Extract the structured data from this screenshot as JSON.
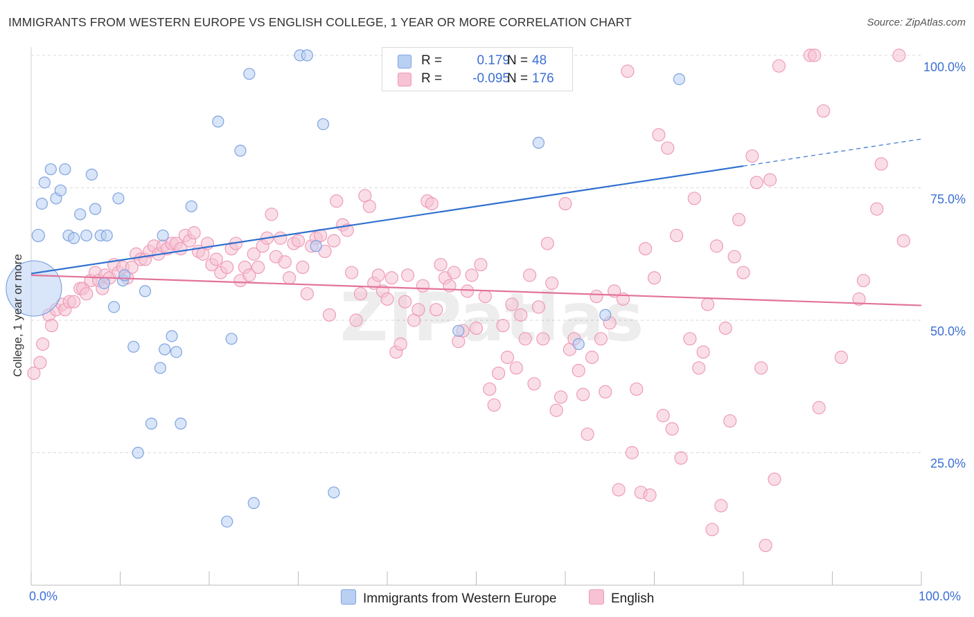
{
  "title": "IMMIGRANTS FROM WESTERN EUROPE VS ENGLISH COLLEGE, 1 YEAR OR MORE CORRELATION CHART",
  "source": "Source: ZipAtlas.com",
  "legend": {
    "series1": {
      "r_label": "R =",
      "r_value": "0.179",
      "n_label": "N =",
      "n_value": "48"
    },
    "series2": {
      "r_label": "R =",
      "r_value": "-0.095",
      "n_label": "N =",
      "n_value": "176"
    }
  },
  "colors": {
    "blue_fill": "#b9d0f2",
    "blue_stroke": "#7ea3e0",
    "blue_line": "#2f6fcf",
    "pink_fill": "#f6c2d4",
    "pink_stroke": "#ee9bb8",
    "pink_line": "#e2729a",
    "accent_text": "#3d6fd4"
  },
  "chart_data": {
    "type": "scatter",
    "title": "IMMIGRANTS FROM WESTERN EUROPE VS ENGLISH COLLEGE, 1 YEAR OR MORE CORRELATION CHART",
    "xlabel": "",
    "ylabel": "College, 1 year or more",
    "xlim": [
      0,
      100
    ],
    "ylim": [
      0,
      100
    ],
    "x_tick_labels": [
      "0.0%",
      "100.0%"
    ],
    "y_tick_labels": [
      "100.0%",
      "75.0%",
      "50.0%",
      "25.0%"
    ],
    "watermark": "ZIPatlas",
    "series": [
      {
        "name": "Immigrants from Western Europe",
        "r": 0.179,
        "n": 48,
        "trend": {
          "x": [
            0,
            80,
            100
          ],
          "y": [
            58.8,
            79.1,
            84.2
          ],
          "dashed_from": 80
        },
        "points": [
          [
            0.3,
            56,
            40
          ],
          [
            0.8,
            66,
            9
          ],
          [
            1.2,
            72,
            8
          ],
          [
            1.5,
            76,
            8
          ],
          [
            2.2,
            78.5,
            8
          ],
          [
            2.8,
            73,
            8
          ],
          [
            3.3,
            74.5,
            8
          ],
          [
            3.8,
            78.5,
            8
          ],
          [
            4.2,
            66,
            8
          ],
          [
            4.8,
            65.5,
            8
          ],
          [
            5.5,
            70,
            8
          ],
          [
            6.2,
            66,
            8
          ],
          [
            6.8,
            77.5,
            8
          ],
          [
            7.2,
            71,
            8
          ],
          [
            7.8,
            66,
            8
          ],
          [
            8.5,
            66,
            8
          ],
          [
            8.2,
            57,
            8
          ],
          [
            9.3,
            52.5,
            8
          ],
          [
            9.8,
            73,
            8
          ],
          [
            10.3,
            57.5,
            8
          ],
          [
            10.5,
            58.5,
            8
          ],
          [
            11.5,
            45,
            8
          ],
          [
            12.0,
            25,
            8
          ],
          [
            12.8,
            55.5,
            8
          ],
          [
            13.5,
            30.5,
            8
          ],
          [
            14.5,
            41,
            8
          ],
          [
            14.8,
            66,
            8
          ],
          [
            15.0,
            44.5,
            8
          ],
          [
            15.8,
            47,
            8
          ],
          [
            16.3,
            44,
            8
          ],
          [
            16.8,
            30.5,
            8
          ],
          [
            18.0,
            71.5,
            8
          ],
          [
            21.0,
            87.5,
            8
          ],
          [
            22.0,
            12,
            8
          ],
          [
            22.5,
            46.5,
            8
          ],
          [
            23.5,
            82,
            8
          ],
          [
            24.5,
            96.5,
            8
          ],
          [
            25.0,
            15.5,
            8
          ],
          [
            30.2,
            100,
            8
          ],
          [
            31.0,
            100,
            8
          ],
          [
            32.0,
            64,
            8
          ],
          [
            32.8,
            87,
            8
          ],
          [
            34.0,
            17.5,
            8
          ],
          [
            48.0,
            48,
            8
          ],
          [
            57.0,
            83.5,
            8
          ],
          [
            61.5,
            45.5,
            8
          ],
          [
            64.5,
            51,
            8
          ],
          [
            72.8,
            95.5,
            8
          ]
        ]
      },
      {
        "name": "English",
        "r": -0.095,
        "n": 176,
        "trend": {
          "x": [
            0,
            100
          ],
          "y": [
            58.5,
            52.8
          ]
        },
        "points": [
          [
            0.3,
            40,
            9
          ],
          [
            1.0,
            42,
            9
          ],
          [
            1.3,
            45.5,
            9
          ],
          [
            2.0,
            51,
            9
          ],
          [
            2.3,
            49,
            9
          ],
          [
            2.8,
            52,
            9
          ],
          [
            3.5,
            53,
            9
          ],
          [
            3.8,
            52,
            9
          ],
          [
            4.3,
            53.5,
            9
          ],
          [
            4.8,
            53.5,
            9
          ],
          [
            5.5,
            56,
            9
          ],
          [
            5.8,
            56,
            9
          ],
          [
            6.2,
            55,
            9
          ],
          [
            6.7,
            57.5,
            9
          ],
          [
            7.2,
            59,
            9
          ],
          [
            7.6,
            57.5,
            9
          ],
          [
            8.0,
            56,
            9
          ],
          [
            8.3,
            58.5,
            9
          ],
          [
            8.8,
            58,
            9
          ],
          [
            9.3,
            60.5,
            9
          ],
          [
            9.8,
            59,
            9
          ],
          [
            10.3,
            60,
            9
          ],
          [
            10.8,
            58,
            9
          ],
          [
            11.3,
            60,
            9
          ],
          [
            11.8,
            62.5,
            9
          ],
          [
            12.3,
            61.5,
            9
          ],
          [
            12.8,
            61.5,
            9
          ],
          [
            13.3,
            63,
            9
          ],
          [
            13.8,
            64,
            9
          ],
          [
            14.3,
            62.5,
            9
          ],
          [
            14.8,
            64,
            9
          ],
          [
            15.3,
            63.5,
            9
          ],
          [
            15.8,
            64.5,
            9
          ],
          [
            16.3,
            64.5,
            9
          ],
          [
            16.8,
            63.5,
            9
          ],
          [
            17.3,
            66,
            9
          ],
          [
            17.8,
            65,
            9
          ],
          [
            18.3,
            66.5,
            9
          ],
          [
            18.8,
            63,
            9
          ],
          [
            19.3,
            62.5,
            9
          ],
          [
            19.8,
            64.5,
            9
          ],
          [
            20.3,
            60.5,
            9
          ],
          [
            20.8,
            61.5,
            9
          ],
          [
            21.3,
            59,
            9
          ],
          [
            22.0,
            60,
            9
          ],
          [
            22.5,
            63.5,
            9
          ],
          [
            23.0,
            64.5,
            9
          ],
          [
            23.5,
            57.5,
            9
          ],
          [
            24.0,
            60,
            9
          ],
          [
            24.5,
            58.5,
            9
          ],
          [
            25.0,
            62.5,
            9
          ],
          [
            25.5,
            60,
            9
          ],
          [
            26.0,
            64,
            9
          ],
          [
            26.5,
            65.5,
            9
          ],
          [
            27.0,
            70,
            9
          ],
          [
            27.5,
            62,
            9
          ],
          [
            28.0,
            65.5,
            9
          ],
          [
            28.5,
            61,
            9
          ],
          [
            29.0,
            58,
            9
          ],
          [
            29.5,
            64.5,
            9
          ],
          [
            30.0,
            65,
            9
          ],
          [
            30.5,
            60,
            9
          ],
          [
            31.0,
            55,
            9
          ],
          [
            31.5,
            64,
            9
          ],
          [
            32.0,
            65.5,
            9
          ],
          [
            32.5,
            66,
            9
          ],
          [
            33.0,
            63,
            9
          ],
          [
            33.5,
            51,
            9
          ],
          [
            34.0,
            65,
            9
          ],
          [
            34.3,
            72.5,
            9
          ],
          [
            35.0,
            68,
            9
          ],
          [
            35.5,
            67,
            9
          ],
          [
            36.0,
            59,
            9
          ],
          [
            36.5,
            50,
            9
          ],
          [
            37.0,
            55,
            9
          ],
          [
            37.5,
            73.5,
            9
          ],
          [
            38.0,
            71.5,
            9
          ],
          [
            38.5,
            57,
            9
          ],
          [
            39.0,
            58.5,
            9
          ],
          [
            39.5,
            55.5,
            9
          ],
          [
            40.0,
            54,
            9
          ],
          [
            40.5,
            58,
            9
          ],
          [
            41.0,
            44,
            9
          ],
          [
            41.5,
            45.5,
            9
          ],
          [
            42.0,
            53.5,
            9
          ],
          [
            42.3,
            58.5,
            9
          ],
          [
            43.0,
            50,
            9
          ],
          [
            43.5,
            52,
            9
          ],
          [
            44.0,
            56.5,
            9
          ],
          [
            44.5,
            72.5,
            9
          ],
          [
            45.0,
            72,
            9
          ],
          [
            45.5,
            52,
            9
          ],
          [
            46.0,
            60.5,
            9
          ],
          [
            46.5,
            58,
            9
          ],
          [
            47.0,
            56.5,
            9
          ],
          [
            47.5,
            59,
            9
          ],
          [
            48.0,
            46,
            9
          ],
          [
            48.5,
            48,
            9
          ],
          [
            49.0,
            55.5,
            9
          ],
          [
            49.5,
            58.5,
            9
          ],
          [
            50.0,
            48.5,
            9
          ],
          [
            50.5,
            60.5,
            9
          ],
          [
            51.0,
            54.5,
            9
          ],
          [
            51.5,
            37,
            9
          ],
          [
            52.0,
            34,
            9
          ],
          [
            52.5,
            40,
            9
          ],
          [
            53.0,
            49,
            9
          ],
          [
            53.5,
            43,
            9
          ],
          [
            54.0,
            53,
            9
          ],
          [
            54.5,
            41,
            9
          ],
          [
            55.0,
            51,
            9
          ],
          [
            55.5,
            46.5,
            9
          ],
          [
            56.0,
            58.5,
            9
          ],
          [
            56.5,
            38,
            9
          ],
          [
            57.0,
            52.5,
            9
          ],
          [
            57.5,
            46.5,
            9
          ],
          [
            58.0,
            64.5,
            9
          ],
          [
            58.5,
            57,
            9
          ],
          [
            59.0,
            33,
            9
          ],
          [
            59.5,
            35.5,
            9
          ],
          [
            60.0,
            72,
            9
          ],
          [
            60.5,
            44.5,
            9
          ],
          [
            61.0,
            46.5,
            9
          ],
          [
            61.5,
            40.5,
            9
          ],
          [
            62.0,
            36,
            9
          ],
          [
            62.5,
            28.5,
            9
          ],
          [
            63.0,
            43,
            9
          ],
          [
            63.5,
            54.5,
            9
          ],
          [
            64.0,
            46.5,
            9
          ],
          [
            64.5,
            36.5,
            9
          ],
          [
            65.0,
            49.5,
            9
          ],
          [
            65.5,
            55.5,
            9
          ],
          [
            66.0,
            18,
            9
          ],
          [
            66.5,
            54,
            9
          ],
          [
            67.0,
            97,
            9
          ],
          [
            67.5,
            25,
            9
          ],
          [
            68.0,
            37,
            9
          ],
          [
            68.5,
            17.5,
            9
          ],
          [
            69.0,
            63.5,
            9
          ],
          [
            69.5,
            17,
            9
          ],
          [
            70.0,
            58,
            9
          ],
          [
            70.5,
            85,
            9
          ],
          [
            71.0,
            32,
            9
          ],
          [
            71.5,
            82.5,
            9
          ],
          [
            72.0,
            29.5,
            9
          ],
          [
            72.5,
            66,
            9
          ],
          [
            73.0,
            24,
            9
          ],
          [
            74.0,
            46.5,
            9
          ],
          [
            74.5,
            73,
            9
          ],
          [
            75.0,
            41,
            9
          ],
          [
            75.5,
            44,
            9
          ],
          [
            76.0,
            53,
            9
          ],
          [
            76.5,
            10.5,
            9
          ],
          [
            77.0,
            64,
            9
          ],
          [
            77.5,
            15,
            9
          ],
          [
            78.0,
            48.5,
            9
          ],
          [
            78.5,
            31,
            9
          ],
          [
            79.0,
            62,
            9
          ],
          [
            79.5,
            69,
            9
          ],
          [
            80.0,
            59,
            9
          ],
          [
            81.0,
            81,
            9
          ],
          [
            81.5,
            76,
            9
          ],
          [
            82.0,
            41,
            9
          ],
          [
            82.5,
            7.5,
            9
          ],
          [
            83.0,
            76.5,
            9
          ],
          [
            83.5,
            20,
            9
          ],
          [
            84.0,
            98,
            9
          ],
          [
            87.5,
            100,
            9
          ],
          [
            88.0,
            100,
            9
          ],
          [
            88.5,
            33.5,
            9
          ],
          [
            89.0,
            89.5,
            9
          ],
          [
            91.0,
            43,
            9
          ],
          [
            93.0,
            54,
            9
          ],
          [
            93.5,
            57.5,
            9
          ],
          [
            95.0,
            71,
            9
          ],
          [
            95.5,
            79.5,
            9
          ],
          [
            97.5,
            100,
            9
          ],
          [
            98.0,
            65,
            9
          ]
        ]
      }
    ]
  },
  "bottom_legend": {
    "series1_label": "Immigrants from Western Europe",
    "series2_label": "English"
  }
}
